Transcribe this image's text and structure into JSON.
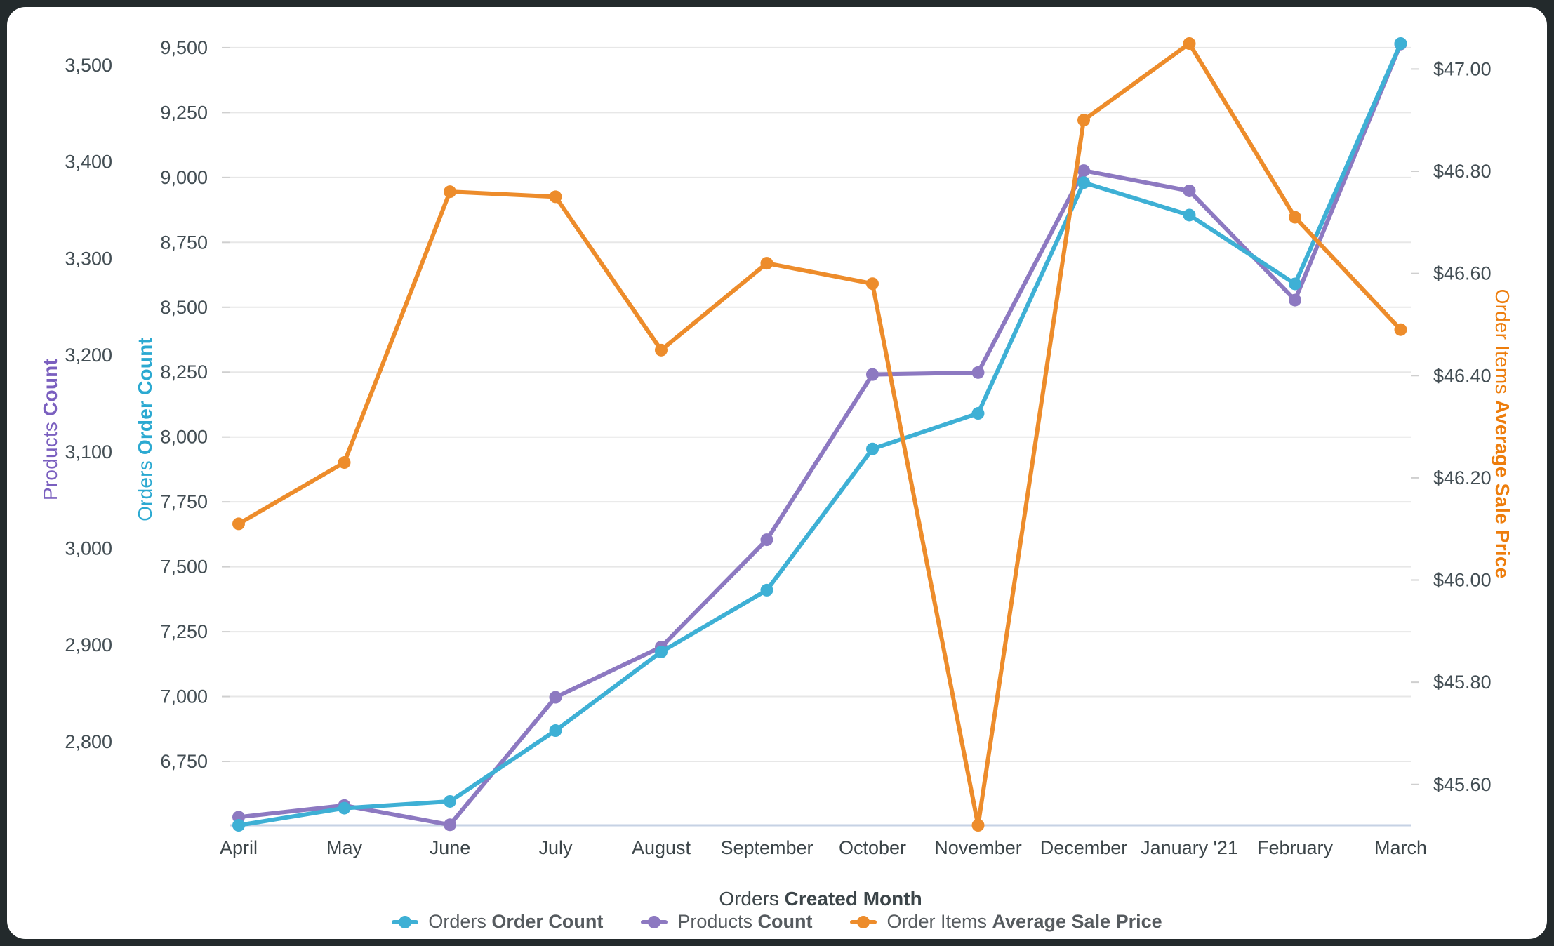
{
  "frame": {
    "page_background": "#232A2C",
    "card_background": "#FFFFFF"
  },
  "chart_data": {
    "type": "line",
    "categories": [
      "April",
      "May",
      "June",
      "July",
      "August",
      "September",
      "October",
      "November",
      "December",
      "January '21",
      "February",
      "March"
    ],
    "x_title": {
      "prefix": "Orders",
      "bold": "Created Month"
    },
    "legend_position": "bottom",
    "grid": "horizontal",
    "series": [
      {
        "name_prefix": "Orders",
        "name_bold": "Order Count",
        "axis": "orders",
        "color": "#3EB0D5",
        "values": [
          6504,
          6570,
          6596,
          6869,
          7172,
          7410,
          7954,
          8091,
          8980,
          8855,
          8590,
          9516
        ]
      },
      {
        "name_prefix": "Products",
        "name_bold": "Count",
        "axis": "products",
        "color": "#8D79C1",
        "values": [
          2722,
          2734,
          2714,
          2846,
          2898,
          3009,
          3180,
          3182,
          3391,
          3370,
          3257,
          3522
        ]
      },
      {
        "name_prefix": "Order Items",
        "name_bold": "Average Sale Price",
        "axis": "price",
        "color": "#ED8C2B",
        "values": [
          46.11,
          46.23,
          46.76,
          46.75,
          46.45,
          46.62,
          46.58,
          45.52,
          46.9,
          47.05,
          46.71,
          46.49
        ]
      }
    ],
    "axes": {
      "products": {
        "title_prefix": "Products",
        "title_bold": "Count",
        "title_color": "#7A5FBF",
        "side": "left-outer",
        "min": 2713.5,
        "max": 3522.5,
        "ticks": [
          3500,
          3400,
          3300,
          3200,
          3100,
          3000,
          2900,
          2800
        ],
        "tick_labels": [
          "3,500",
          "3,400",
          "3,300",
          "3,200",
          "3,100",
          "3,000",
          "2,900",
          "2,800"
        ]
      },
      "orders": {
        "title_prefix": "Orders",
        "title_bold": "Order Count",
        "title_color": "#2BA9D1",
        "side": "left-inner",
        "min": 6504,
        "max": 9516,
        "ticks": [
          9500,
          9250,
          9000,
          8750,
          8500,
          8250,
          8000,
          7750,
          7500,
          7250,
          7000,
          6750
        ],
        "tick_labels": [
          "9,500",
          "9,250",
          "9,000",
          "8,750",
          "8,500",
          "8,250",
          "8,000",
          "7,750",
          "7,500",
          "7,250",
          "7,000",
          "6,750"
        ]
      },
      "price": {
        "title_prefix": "Order Items",
        "title_bold": "Average Sale Price",
        "title_color": "#ED7D0C",
        "side": "right",
        "min": 45.52,
        "max": 47.05,
        "ticks": [
          47.0,
          46.8,
          46.6,
          46.4,
          46.2,
          46.0,
          45.8,
          45.6
        ],
        "tick_labels": [
          "$47.00",
          "$46.80",
          "$46.60",
          "$46.40",
          "$46.20",
          "$46.00",
          "$45.80",
          "$45.60"
        ]
      }
    }
  }
}
